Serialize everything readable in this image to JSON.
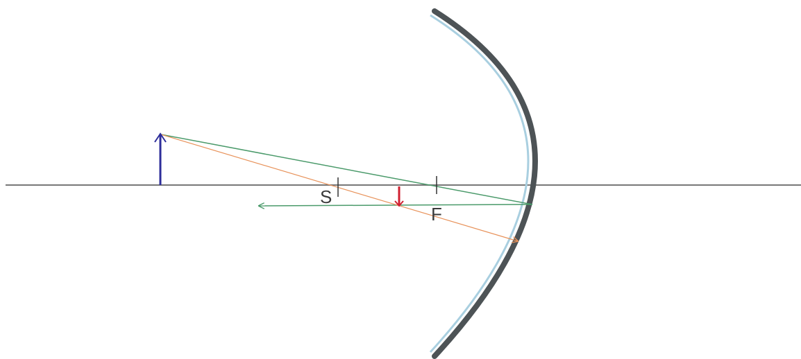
{
  "diagram": {
    "labels": {
      "center_of_curvature": "S",
      "focal_point": "F"
    },
    "colors": {
      "optical_axis": "#777777",
      "mirror_back": "#4d5356",
      "mirror_surface": "#a9cfe0",
      "object": "#2e2e9a",
      "image": "#d02030",
      "ray_green": "#4a9a6a",
      "ray_orange": "#e8925a",
      "tick": "#333333"
    }
  }
}
